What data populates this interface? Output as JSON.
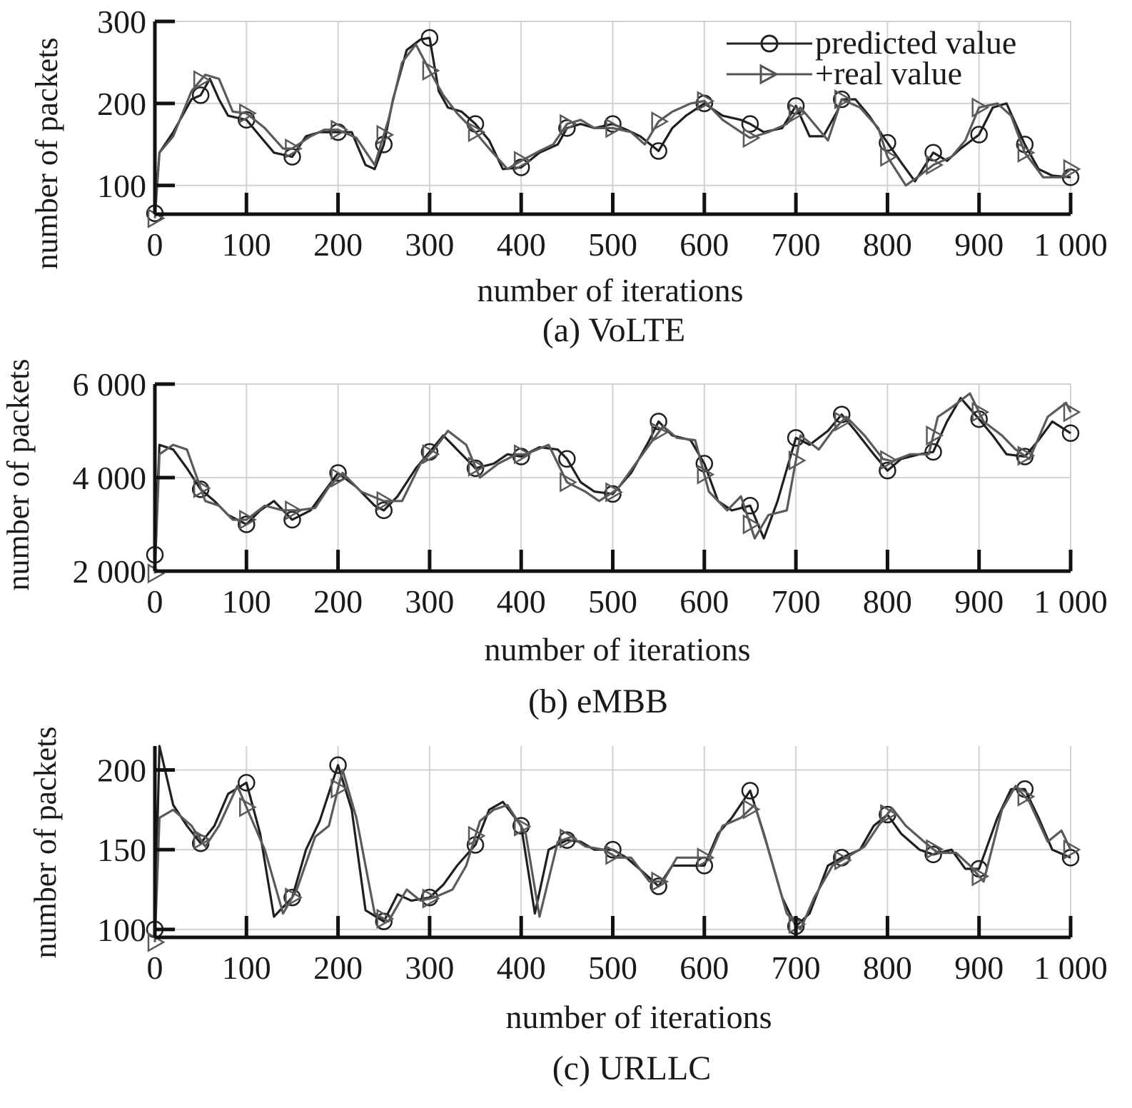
{
  "legend": {
    "predicted": "predicted value",
    "real": "+real value"
  },
  "chart_data": [
    {
      "type": "line",
      "caption": "(a) VoLTE",
      "xlabel": "number of iterations",
      "ylabel": "number of packets",
      "xlim": [
        0,
        1000
      ],
      "ylim": [
        65,
        300
      ],
      "xticks": [
        0,
        100,
        200,
        300,
        400,
        500,
        600,
        700,
        800,
        900,
        1000
      ],
      "xtick_labels": [
        "0",
        "100",
        "200",
        "300",
        "400",
        "500",
        "600",
        "700",
        "800",
        "900",
        "1 000"
      ],
      "yticks": [
        100,
        200,
        300
      ],
      "ytick_labels": [
        "100",
        "200",
        "300"
      ],
      "grid": true,
      "legend_position": "top-right",
      "series": [
        {
          "key": "predicted",
          "marker": "circle",
          "x": [
            0,
            5,
            20,
            40,
            50,
            60,
            70,
            80,
            100,
            115,
            130,
            150,
            165,
            180,
            200,
            215,
            230,
            240,
            250,
            260,
            275,
            290,
            300,
            310,
            320,
            335,
            350,
            365,
            380,
            400,
            420,
            440,
            450,
            465,
            480,
            500,
            515,
            530,
            550,
            565,
            580,
            600,
            620,
            640,
            650,
            665,
            685,
            700,
            715,
            730,
            745,
            750,
            765,
            780,
            800,
            815,
            830,
            850,
            865,
            880,
            900,
            915,
            930,
            950,
            965,
            980,
            1000
          ],
          "y": [
            66,
            140,
            165,
            205,
            210,
            230,
            205,
            185,
            180,
            160,
            140,
            135,
            160,
            165,
            165,
            165,
            125,
            120,
            150,
            205,
            265,
            278,
            280,
            215,
            195,
            190,
            175,
            155,
            120,
            122,
            140,
            150,
            170,
            175,
            170,
            175,
            168,
            160,
            142,
            170,
            185,
            200,
            185,
            180,
            175,
            165,
            170,
            197,
            160,
            160,
            190,
            205,
            205,
            185,
            152,
            128,
            105,
            140,
            130,
            145,
            162,
            195,
            200,
            150,
            120,
            112,
            110
          ]
        },
        {
          "key": "real",
          "marker": "triangle",
          "x": [
            0,
            5,
            20,
            40,
            55,
            70,
            85,
            100,
            120,
            140,
            150,
            170,
            185,
            200,
            220,
            240,
            255,
            270,
            285,
            300,
            315,
            330,
            350,
            365,
            385,
            400,
            420,
            435,
            450,
            465,
            480,
            500,
            520,
            535,
            550,
            565,
            585,
            600,
            620,
            640,
            650,
            670,
            690,
            705,
            720,
            735,
            750,
            770,
            790,
            800,
            820,
            835,
            850,
            870,
            885,
            900,
            920,
            935,
            950,
            970,
            990,
            1000
          ],
          "y": [
            60,
            140,
            160,
            215,
            235,
            230,
            190,
            188,
            170,
            145,
            145,
            160,
            168,
            168,
            158,
            125,
            180,
            250,
            272,
            240,
            210,
            188,
            165,
            145,
            120,
            130,
            142,
            150,
            175,
            180,
            170,
            170,
            165,
            150,
            178,
            190,
            200,
            203,
            180,
            165,
            158,
            165,
            175,
            195,
            175,
            155,
            205,
            195,
            170,
            135,
            100,
            112,
            125,
            135,
            155,
            195,
            200,
            185,
            140,
            110,
            110,
            120
          ]
        }
      ]
    },
    {
      "type": "line",
      "caption": "(b) eMBB",
      "xlabel": "number of iterations",
      "ylabel": "number of packets",
      "xlim": [
        0,
        1000
      ],
      "ylim": [
        2000,
        6000
      ],
      "xticks": [
        0,
        100,
        200,
        300,
        400,
        500,
        600,
        700,
        800,
        900,
        1000
      ],
      "xtick_labels": [
        "0",
        "100",
        "200",
        "300",
        "400",
        "500",
        "600",
        "700",
        "800",
        "900",
        "1 000"
      ],
      "yticks": [
        2000,
        4000,
        6000
      ],
      "ytick_labels": [
        "2 000",
        "4 000",
        "6 000"
      ],
      "grid": true,
      "legend_position": "none",
      "series": [
        {
          "key": "predicted",
          "marker": "circle",
          "x": [
            0,
            5,
            20,
            35,
            50,
            65,
            80,
            100,
            115,
            130,
            150,
            170,
            185,
            200,
            220,
            240,
            250,
            265,
            285,
            300,
            315,
            330,
            350,
            370,
            385,
            400,
            420,
            440,
            450,
            465,
            480,
            500,
            520,
            540,
            550,
            565,
            585,
            600,
            615,
            630,
            650,
            665,
            680,
            700,
            715,
            735,
            750,
            765,
            785,
            800,
            815,
            835,
            850,
            865,
            880,
            900,
            915,
            930,
            950,
            965,
            980,
            1000
          ],
          "y": [
            2350,
            4700,
            4600,
            4200,
            3750,
            3500,
            3200,
            3000,
            3300,
            3500,
            3100,
            3300,
            3700,
            4100,
            3800,
            3400,
            3300,
            3600,
            4200,
            4550,
            4900,
            4600,
            4200,
            4300,
            4500,
            4450,
            4650,
            4600,
            4400,
            3900,
            3700,
            3650,
            4100,
            4800,
            5200,
            4900,
            4800,
            4300,
            3500,
            3300,
            3400,
            2700,
            3500,
            4850,
            4700,
            5000,
            5350,
            5000,
            4500,
            4150,
            4400,
            4500,
            4550,
            5200,
            5700,
            5250,
            4900,
            4500,
            4450,
            4800,
            5200,
            4950
          ]
        },
        {
          "key": "real",
          "marker": "triangle",
          "x": [
            0,
            5,
            20,
            35,
            55,
            70,
            85,
            100,
            120,
            140,
            155,
            175,
            190,
            205,
            225,
            250,
            270,
            290,
            305,
            320,
            340,
            355,
            375,
            395,
            405,
            430,
            450,
            470,
            485,
            505,
            525,
            540,
            555,
            570,
            590,
            605,
            625,
            640,
            655,
            670,
            690,
            705,
            725,
            740,
            755,
            775,
            795,
            805,
            825,
            845,
            855,
            870,
            890,
            905,
            925,
            940,
            955,
            975,
            995,
            1000
          ],
          "y": [
            1950,
            4500,
            4700,
            4600,
            3500,
            3400,
            3100,
            3100,
            3400,
            3300,
            3300,
            3350,
            3800,
            4100,
            3700,
            3500,
            3500,
            4300,
            4600,
            5000,
            4700,
            4000,
            4300,
            4500,
            4500,
            4700,
            3900,
            3700,
            3500,
            3750,
            4300,
            4700,
            5100,
            4850,
            4800,
            3700,
            3300,
            3600,
            2700,
            3200,
            3300,
            4900,
            4600,
            5000,
            5300,
            4900,
            4400,
            4350,
            4500,
            4500,
            5300,
            5500,
            5800,
            5200,
            4900,
            4600,
            4400,
            5300,
            5600,
            5400
          ]
        }
      ]
    },
    {
      "type": "line",
      "caption": "(c) URLLC",
      "xlabel": "number of iterations",
      "ylabel": "number of packets",
      "xlim": [
        0,
        1000
      ],
      "ylim": [
        95,
        215
      ],
      "xticks": [
        0,
        100,
        200,
        300,
        400,
        500,
        600,
        700,
        800,
        900,
        1000
      ],
      "xtick_labels": [
        "0",
        "100",
        "200",
        "300",
        "400",
        "500",
        "600",
        "700",
        "800",
        "900",
        "1 000"
      ],
      "yticks": [
        100,
        150,
        200
      ],
      "ytick_labels": [
        "100",
        "150",
        "200"
      ],
      "grid": true,
      "legend_position": "none",
      "series": [
        {
          "key": "predicted",
          "marker": "circle",
          "x": [
            0,
            5,
            20,
            35,
            50,
            65,
            80,
            100,
            115,
            130,
            150,
            165,
            180,
            200,
            215,
            230,
            250,
            265,
            280,
            300,
            315,
            330,
            350,
            365,
            380,
            400,
            415,
            430,
            450,
            465,
            480,
            500,
            515,
            535,
            550,
            565,
            585,
            600,
            615,
            630,
            650,
            665,
            685,
            700,
            715,
            735,
            750,
            770,
            785,
            800,
            815,
            835,
            850,
            870,
            885,
            900,
            920,
            935,
            950,
            965,
            980,
            1000
          ],
          "y": [
            100,
            215,
            178,
            165,
            154,
            165,
            185,
            192,
            160,
            108,
            120,
            150,
            168,
            203,
            175,
            112,
            105,
            122,
            118,
            120,
            128,
            140,
            153,
            175,
            180,
            165,
            110,
            150,
            156,
            155,
            150,
            150,
            145,
            135,
            127,
            140,
            140,
            140,
            160,
            170,
            187,
            160,
            120,
            102,
            110,
            140,
            145,
            150,
            165,
            172,
            160,
            150,
            147,
            150,
            138,
            138,
            170,
            188,
            188,
            170,
            150,
            145
          ]
        },
        {
          "key": "real",
          "marker": "triangle",
          "x": [
            0,
            5,
            20,
            40,
            55,
            70,
            90,
            105,
            120,
            140,
            155,
            175,
            190,
            205,
            220,
            240,
            255,
            275,
            290,
            305,
            325,
            340,
            355,
            370,
            385,
            405,
            420,
            440,
            455,
            470,
            490,
            505,
            520,
            540,
            555,
            570,
            590,
            605,
            620,
            640,
            655,
            670,
            690,
            705,
            720,
            740,
            755,
            775,
            790,
            805,
            820,
            840,
            855,
            875,
            890,
            905,
            925,
            940,
            955,
            975,
            990,
            1000
          ],
          "y": [
            92,
            170,
            175,
            165,
            152,
            165,
            190,
            170,
            150,
            110,
            125,
            158,
            165,
            200,
            170,
            110,
            105,
            125,
            118,
            120,
            125,
            140,
            168,
            175,
            178,
            160,
            108,
            155,
            158,
            152,
            150,
            145,
            145,
            130,
            130,
            145,
            145,
            145,
            165,
            170,
            178,
            150,
            110,
            100,
            120,
            140,
            145,
            152,
            165,
            176,
            165,
            155,
            148,
            148,
            140,
            130,
            175,
            190,
            180,
            155,
            162,
            150
          ]
        }
      ]
    }
  ]
}
